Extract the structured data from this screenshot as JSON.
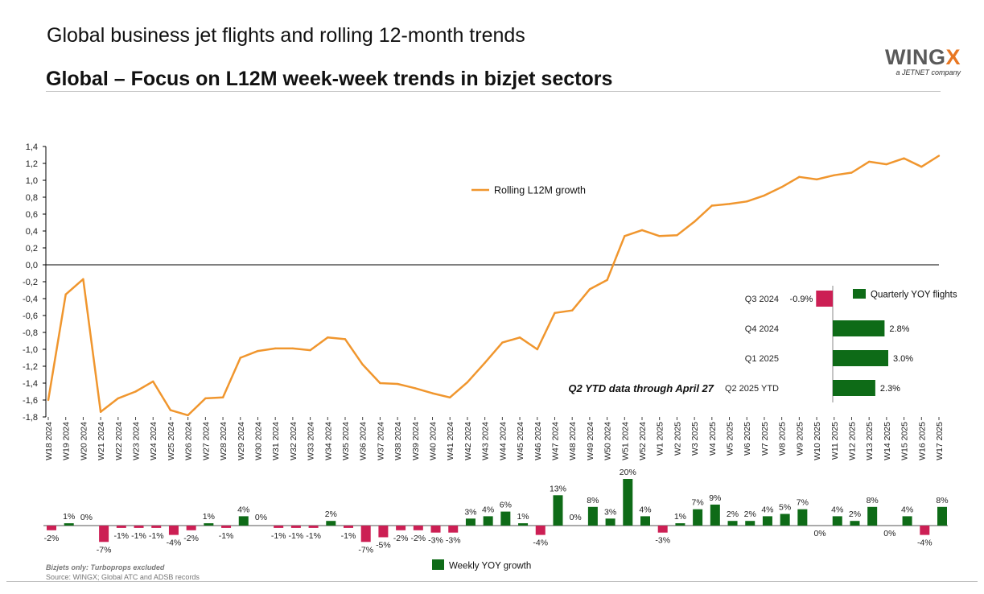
{
  "header": {
    "title": "Global business jet flights and rolling 12-month trends",
    "subtitle": "Global – Focus on L12M week-week trends in bizjet sectors"
  },
  "logo": {
    "text_main": "WING",
    "text_accent": "X",
    "tagline": "a JETNET company"
  },
  "footer": {
    "note": "Bizjets only: Turboprops excluded",
    "source": "Source: WINGX; Global ATC and ADSB records"
  },
  "colors": {
    "line": "#f0962e",
    "positive": "#0e6b17",
    "negative": "#cc1f54",
    "axis": "#000000"
  },
  "chart_data": [
    {
      "type": "line",
      "weeks": [
        "W18 2024",
        "W19 2024",
        "W20 2024",
        "W21 2024",
        "W22 2024",
        "W23 2024",
        "W24 2024",
        "W25 2024",
        "W26 2024",
        "W27 2024",
        "W28 2024",
        "W29 2024",
        "W30 2024",
        "W31 2024",
        "W32 2024",
        "W33 2024",
        "W34 2024",
        "W35 2024",
        "W36 2024",
        "W37 2024",
        "W38 2024",
        "W39 2024",
        "W40 2024",
        "W41 2024",
        "W42 2024",
        "W43 2024",
        "W44 2024",
        "W45 2024",
        "W46 2024",
        "W47 2024",
        "W48 2024",
        "W49 2024",
        "W50 2024",
        "W51 2024",
        "W52 2024",
        "W1 2025",
        "W2 2025",
        "W3 2025",
        "W4 2025",
        "W5 2025",
        "W6 2025",
        "W7 2025",
        "W8 2025",
        "W9 2025",
        "W10 2025",
        "W11 2025",
        "W12 2025",
        "W13 2025",
        "W14 2025",
        "W15 2025",
        "W16 2025",
        "W17 2025"
      ],
      "series": [
        {
          "name": "Rolling L12M growth",
          "values": [
            -1.6,
            -0.35,
            -0.17,
            -1.74,
            -1.58,
            -1.5,
            -1.38,
            -1.72,
            -1.78,
            -1.58,
            -1.57,
            -1.1,
            -1.02,
            -0.99,
            -0.99,
            -1.01,
            -0.86,
            -0.88,
            -1.18,
            -1.4,
            -1.41,
            -1.46,
            -1.52,
            -1.57,
            -1.39,
            -1.16,
            -0.92,
            -0.86,
            -1.0,
            -0.57,
            -0.54,
            -0.29,
            -0.18,
            0.34,
            0.41,
            0.34,
            0.35,
            0.51,
            0.7,
            0.72,
            0.75,
            0.82,
            0.92,
            1.04,
            1.01,
            1.06,
            1.09,
            1.22,
            1.19,
            1.26,
            1.16,
            1.29
          ]
        }
      ],
      "y_ticks": [
        "1,4",
        "1,2",
        "1,0",
        "0,8",
        "0,6",
        "0,4",
        "0,2",
        "0,0",
        "-0,2",
        "-0,4",
        "-0,6",
        "-0,8",
        "-1,0",
        "-1,2",
        "-1,4",
        "-1,6",
        "-1,8"
      ],
      "ylim": [
        -1.8,
        1.4
      ],
      "grid": false,
      "legend": "top-center"
    },
    {
      "type": "bar",
      "series": [
        {
          "name": "Weekly YOY growth",
          "values": [
            -2,
            1,
            0,
            -7,
            -1,
            -1,
            -1,
            -4,
            -2,
            1,
            -1,
            4,
            0,
            -1,
            -1,
            -1,
            2,
            -1,
            -7,
            -5,
            -2,
            -2,
            -3,
            -3,
            3,
            4,
            6,
            1,
            -4,
            13,
            0,
            8,
            3,
            20,
            4,
            -3,
            1,
            7,
            9,
            2,
            2,
            4,
            5,
            7,
            0,
            4,
            2,
            8,
            0,
            4,
            -4,
            8
          ],
          "labels": [
            "-2%",
            "1%",
            "0%",
            "-7%",
            "-1%",
            "-1%",
            "-1%",
            "-4%",
            "-2%",
            "1%",
            "-1%",
            "4%",
            "0%",
            "-1%",
            "-1%",
            "-1%",
            "2%",
            "-1%",
            "-7%",
            "-5%",
            "-2%",
            "-2%",
            "-3%",
            "-3%",
            "3%",
            "4%",
            "6%",
            "1%",
            "-4%",
            "13%",
            "0%",
            "8%",
            "3%",
            "20%",
            "4%",
            "-3%",
            "1%",
            "7%",
            "9%",
            "2%",
            "2%",
            "4%",
            "5%",
            "7%",
            "0%",
            "4%",
            "2%",
            "8%",
            "0%",
            "4%",
            "-4%",
            "8%"
          ]
        }
      ],
      "legend": "bottom-center"
    },
    {
      "type": "bar",
      "orientation": "horizontal",
      "categories": [
        "Q3 2024",
        "Q4 2024",
        "Q1 2025",
        "Q2 2025 YTD"
      ],
      "series": [
        {
          "name": "Quarterly YOY flights",
          "values": [
            -0.9,
            2.8,
            3.0,
            2.3
          ],
          "labels": [
            "-0.9%",
            "2.8%",
            "3.0%",
            "2.3%"
          ]
        }
      ],
      "annotation": "Q2 YTD data through April 27",
      "legend": "top-right"
    }
  ]
}
